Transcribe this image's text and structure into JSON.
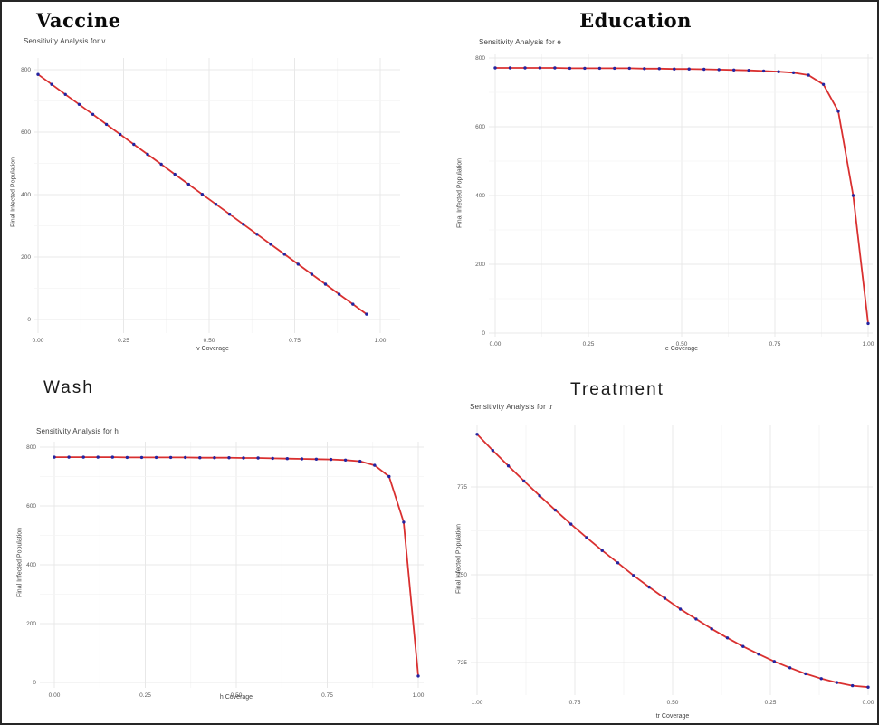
{
  "figure": {
    "background": "#ffffff",
    "border_color": "#262626",
    "grid_major_color": "#e8e8e8",
    "grid_minor_color": "#f4f4f4"
  },
  "chart_data": [
    {
      "type": "line",
      "title": "Vaccine",
      "subtitle": "Sensitivity Analysis for v",
      "xlabel": "v Coverage",
      "ylabel": "Final Infected Population",
      "legend": "none",
      "grid": "on",
      "line_color": "#d93030",
      "point_color": "#2424a0",
      "x_tick_labels": [
        "0.00",
        "0.25",
        "0.50",
        "0.75",
        "1.00"
      ],
      "x_tick_values": [
        0,
        0.25,
        0.5,
        0.75,
        1
      ],
      "y_tick_labels": [
        "800",
        "600",
        "400",
        "200",
        "0"
      ],
      "y_tick_values": [
        800,
        600,
        400,
        200,
        0
      ],
      "xlim": [
        0,
        1
      ],
      "ylim": [
        0,
        800
      ],
      "x": [
        0,
        0.04,
        0.08,
        0.12,
        0.16,
        0.2,
        0.24,
        0.28,
        0.32,
        0.36,
        0.4,
        0.44,
        0.48,
        0.52,
        0.56,
        0.6,
        0.64,
        0.68,
        0.72,
        0.76,
        0.8,
        0.84,
        0.88,
        0.92,
        0.96
      ],
      "y": [
        785,
        753,
        721,
        689,
        657,
        625,
        593,
        561,
        529,
        497,
        465,
        433,
        401,
        369,
        337,
        305,
        273,
        241,
        209,
        177,
        145,
        113,
        81,
        49,
        17
      ]
    },
    {
      "type": "line",
      "title": "Education",
      "subtitle": "Sensitivity Analysis for e",
      "xlabel": "e Coverage",
      "ylabel": "Final Infected Population",
      "legend": "none",
      "grid": "on",
      "line_color": "#d93030",
      "point_color": "#2424a0",
      "x_tick_labels": [
        "0.00",
        "0.25",
        "0.50",
        "0.75",
        "1.00"
      ],
      "x_tick_values": [
        0,
        0.25,
        0.5,
        0.75,
        1
      ],
      "y_tick_labels": [
        "800",
        "600",
        "400",
        "200",
        "0"
      ],
      "y_tick_values": [
        800,
        600,
        400,
        200,
        0
      ],
      "xlim": [
        0,
        1
      ],
      "ylim": [
        0,
        800
      ],
      "x": [
        0,
        0.04,
        0.08,
        0.12,
        0.16,
        0.2,
        0.24,
        0.28,
        0.32,
        0.36,
        0.4,
        0.44,
        0.48,
        0.52,
        0.56,
        0.6,
        0.64,
        0.68,
        0.72,
        0.76,
        0.8,
        0.84,
        0.88,
        0.92,
        0.96,
        1
      ],
      "y": [
        771,
        771,
        771,
        771,
        771,
        770,
        770,
        770,
        770,
        770,
        769,
        769,
        768,
        768,
        767,
        766,
        765,
        764,
        762,
        760,
        757,
        750,
        723,
        645,
        400,
        28
      ]
    },
    {
      "type": "line",
      "title": "Wash",
      "subtitle": "Sensitivity Analysis for h",
      "xlabel": "h Coverage",
      "ylabel": "Final Infected Population",
      "legend": "none",
      "grid": "on",
      "line_color": "#d93030",
      "point_color": "#2424a0",
      "x_tick_labels": [
        "0.00",
        "0.25",
        "0.50",
        "0.75",
        "1.00"
      ],
      "x_tick_values": [
        0,
        0.25,
        0.5,
        0.75,
        1
      ],
      "y_tick_labels": [
        "800",
        "600",
        "400",
        "200",
        "0"
      ],
      "y_tick_values": [
        800,
        600,
        400,
        200,
        0
      ],
      "xlim": [
        0,
        1
      ],
      "ylim": [
        0,
        800
      ],
      "x": [
        0,
        0.04,
        0.08,
        0.12,
        0.16,
        0.2,
        0.24,
        0.28,
        0.32,
        0.36,
        0.4,
        0.44,
        0.48,
        0.52,
        0.56,
        0.6,
        0.64,
        0.68,
        0.72,
        0.76,
        0.8,
        0.84,
        0.88,
        0.92,
        0.96,
        1
      ],
      "y": [
        766,
        766,
        766,
        766,
        766,
        765,
        765,
        765,
        765,
        765,
        764,
        764,
        764,
        763,
        763,
        762,
        761,
        760,
        759,
        758,
        756,
        752,
        738,
        700,
        545,
        22
      ]
    },
    {
      "type": "line",
      "title": "Treatment",
      "subtitle": "Sensitivity Analysis for tr",
      "xlabel": "tr Coverage",
      "ylabel": "Final Infected Population",
      "legend": "none",
      "grid": "on",
      "line_color": "#d93030",
      "point_color": "#2424a0",
      "x_tick_labels": [
        "1.00",
        "0.75",
        "0.50",
        "0.25",
        "0.00"
      ],
      "x_tick_values": [
        1,
        0.75,
        0.5,
        0.25,
        0
      ],
      "x_axis_reversed": true,
      "y_tick_labels": [
        "775",
        "750",
        "725"
      ],
      "y_tick_values": [
        775,
        750,
        725
      ],
      "xlim": [
        1,
        0
      ],
      "ylim": [
        717,
        792
      ],
      "x": [
        1,
        0.96,
        0.92,
        0.88,
        0.84,
        0.8,
        0.76,
        0.72,
        0.68,
        0.64,
        0.6,
        0.56,
        0.52,
        0.48,
        0.44,
        0.4,
        0.36,
        0.32,
        0.28,
        0.24,
        0.2,
        0.16,
        0.12,
        0.08,
        0.04,
        0
      ],
      "y": [
        790,
        785.4,
        781,
        776.7,
        772.5,
        768.4,
        764.4,
        760.6,
        756.9,
        753.4,
        749.8,
        746.5,
        743.3,
        740.2,
        737.4,
        734.6,
        732,
        729.6,
        727.4,
        725.3,
        723.5,
        721.8,
        720.4,
        719.3,
        718.4,
        718
      ]
    }
  ]
}
